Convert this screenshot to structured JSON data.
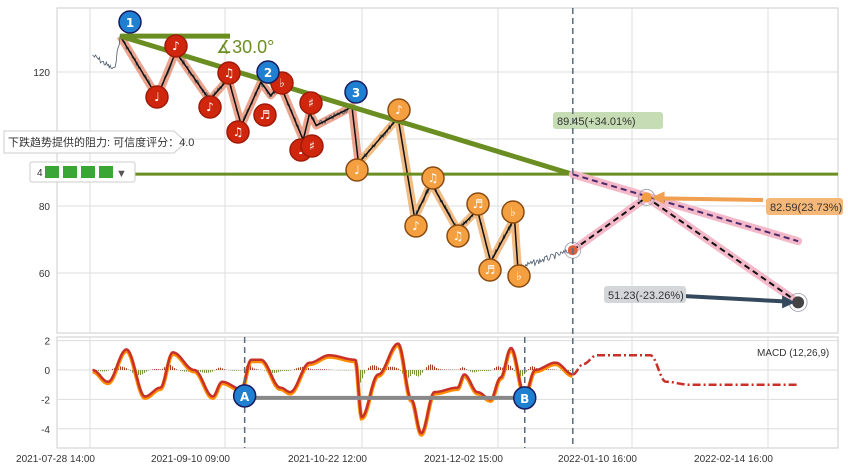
{
  "chart_data": [
    {
      "type": "line",
      "panel": "price",
      "yticks": [
        120,
        80,
        60
      ],
      "ylim": [
        48,
        141
      ],
      "grid": true,
      "price_pivots": [
        {
          "x": "2021-07-29 10:00",
          "y": 125
        },
        {
          "x": "2021-08-05 10:00",
          "y": 120.6
        },
        {
          "x": "2021-08-07 10:00",
          "y": 130.7
        },
        {
          "x": "2021-08-19 10:00",
          "y": 112.5
        },
        {
          "x": "2021-08-25 10:00",
          "y": 126
        },
        {
          "x": "2021-09-05 10:00",
          "y": 111.6
        },
        {
          "x": "2021-09-11 10:00",
          "y": 118
        },
        {
          "x": "2021-09-15 10:00",
          "y": 104
        },
        {
          "x": "2021-09-21 10:00",
          "y": 117
        },
        {
          "x": "2021-09-24 10:00",
          "y": 113
        },
        {
          "x": "2021-09-27 10:00",
          "y": 116
        },
        {
          "x": "2021-10-04 10:00",
          "y": 99.7
        },
        {
          "x": "2021-10-06 10:00",
          "y": 107.8
        },
        {
          "x": "2021-10-08 10:00",
          "y": 104
        },
        {
          "x": "2021-10-19 10:00",
          "y": 109.6
        },
        {
          "x": "2021-10-21 10:00",
          "y": 92.8
        },
        {
          "x": "2021-11-02 10:00",
          "y": 106.3
        },
        {
          "x": "2021-11-07 10:00",
          "y": 76.4
        },
        {
          "x": "2021-11-12 10:00",
          "y": 86.9
        },
        {
          "x": "2021-11-20 10:00",
          "y": 72.8
        },
        {
          "x": "2021-11-26 10:00",
          "y": 78.8
        },
        {
          "x": "2021-11-30 10:00",
          "y": 63.3
        },
        {
          "x": "2021-12-07 10:00",
          "y": 76.4
        },
        {
          "x": "2021-12-08 10:00",
          "y": 61.5
        },
        {
          "x": "2021-12-24 10:00",
          "y": 66.8
        }
      ],
      "trendline": {
        "from": {
          "x": "2021-08-07 10:00",
          "y": 130.7
        },
        "to": {
          "x": "2021-12-24 10:00",
          "y": 89.45
        },
        "angle_label": "∡30.0°"
      },
      "support_level": 89.5,
      "forecast": {
        "target_up": {
          "x": "2022-01-14 10:00",
          "y": 82.59,
          "label": "82.59(23.73%)"
        },
        "target_down": {
          "x": "2022-02-22 10:00",
          "y": 51.23,
          "label": "51.23(-23.26%)"
        },
        "trend_projection": {
          "x": "2022-02-22 10:00",
          "y": 69.5
        },
        "resistance_label": "89.45(+34.01%)"
      },
      "wave_labels_numbered": [
        "1",
        "2",
        "3"
      ],
      "wave_labels_red": [
        "♩",
        "♪",
        "♪",
        "♫",
        "♫",
        "♬",
        "♭",
        "♯",
        "♩",
        "♯"
      ],
      "wave_labels_orange": [
        "♩",
        "♪",
        "♫",
        "♪",
        "♫",
        "♬",
        "♭",
        "♬",
        "♭"
      ]
    },
    {
      "type": "line",
      "panel": "macd",
      "title": "MACD (12,26,9)",
      "yticks": [
        2,
        0,
        -2,
        -4
      ],
      "ylim": [
        -5,
        2.2
      ],
      "macd": [
        {
          "x": "2021-07-29 10:00",
          "y": 0
        },
        {
          "x": "2021-08-03 10:00",
          "y": -0.8
        },
        {
          "x": "2021-08-09 10:00",
          "y": 1.4
        },
        {
          "x": "2021-08-15 10:00",
          "y": -1.8
        },
        {
          "x": "2021-08-20 10:00",
          "y": -1.2
        },
        {
          "x": "2021-08-24 10:00",
          "y": 1.2
        },
        {
          "x": "2021-08-31 10:00",
          "y": 0
        },
        {
          "x": "2021-09-06 10:00",
          "y": -1.8
        },
        {
          "x": "2021-09-09 10:00",
          "y": -0.8
        },
        {
          "x": "2021-09-15 10:00",
          "y": -1.3
        },
        {
          "x": "2021-09-18 10:00",
          "y": 0.7
        },
        {
          "x": "2021-09-21 10:00",
          "y": 0.7
        },
        {
          "x": "2021-09-27 10:00",
          "y": -1.2
        },
        {
          "x": "2021-09-30 10:00",
          "y": -1.5
        },
        {
          "x": "2021-10-06 10:00",
          "y": 0.5
        },
        {
          "x": "2021-10-12 10:00",
          "y": 1.0
        },
        {
          "x": "2021-10-20 10:00",
          "y": 0.7
        },
        {
          "x": "2021-10-22 10:00",
          "y": -3.2
        },
        {
          "x": "2021-10-27 10:00",
          "y": -0.3
        },
        {
          "x": "2021-11-02 10:00",
          "y": 1.8
        },
        {
          "x": "2021-11-06 10:00",
          "y": -2
        },
        {
          "x": "2021-11-09 10:00",
          "y": -4.3
        },
        {
          "x": "2021-11-13 10:00",
          "y": -1.5
        },
        {
          "x": "2021-11-20 10:00",
          "y": -1.2
        },
        {
          "x": "2021-11-22 10:00",
          "y": -0.3
        },
        {
          "x": "2021-11-26 10:00",
          "y": -1.5
        },
        {
          "x": "2021-11-30 10:00",
          "y": -2
        },
        {
          "x": "2021-12-03 10:00",
          "y": -0.5
        },
        {
          "x": "2021-12-06 10:00",
          "y": 1.5
        },
        {
          "x": "2021-12-10 10:00",
          "y": -1.7
        },
        {
          "x": "2021-12-13 10:00",
          "y": 0
        },
        {
          "x": "2021-12-19 10:00",
          "y": 0.5
        },
        {
          "x": "2021-12-24 10:00",
          "y": -0.3
        }
      ],
      "macd_forecast": [
        {
          "x": "2021-12-24 10:00",
          "y": -0.3
        },
        {
          "x": "2021-12-27 10:00",
          "y": 0.4
        },
        {
          "x": "2021-12-31 10:00",
          "y": 1.0
        },
        {
          "x": "2022-01-15 10:00",
          "y": 1.0
        },
        {
          "x": "2022-01-19 10:00",
          "y": -0.8
        },
        {
          "x": "2022-01-25 10:00",
          "y": -1.0
        },
        {
          "x": "2022-02-22 10:00",
          "y": -1.0
        }
      ],
      "divergence": {
        "labels": [
          "A",
          "B"
        ],
        "from": "2021-09-16 10:00",
        "to": "2021-12-10 10:00",
        "y": -1.9
      }
    }
  ],
  "xticks": [
    "2021-07-28 14:00",
    "2021-09-10 09:00",
    "2021-10-22 12:00",
    "2021-12-02 15:00",
    "2022-01-10 16:00",
    "2022-02-14 16:00"
  ],
  "forecast_start": "2021-12-24 10:00",
  "resistance_note": "下跌趋势提供的阻力: 可信度评分：4.0",
  "rating": {
    "value": "4",
    "icon": "frog-icon",
    "extra_icon": "signal-icon"
  },
  "colors": {
    "trend": "#6b8e23",
    "wave_red": "#d0260e",
    "wave_orange": "#f5a040",
    "numbered": "#1f7fd0",
    "macd": "#c8302a",
    "signal": "#ff8c00",
    "hist_up": "#a0301a",
    "hist_down": "#6b8e23",
    "forecast_pink": "#f4b8c8"
  }
}
